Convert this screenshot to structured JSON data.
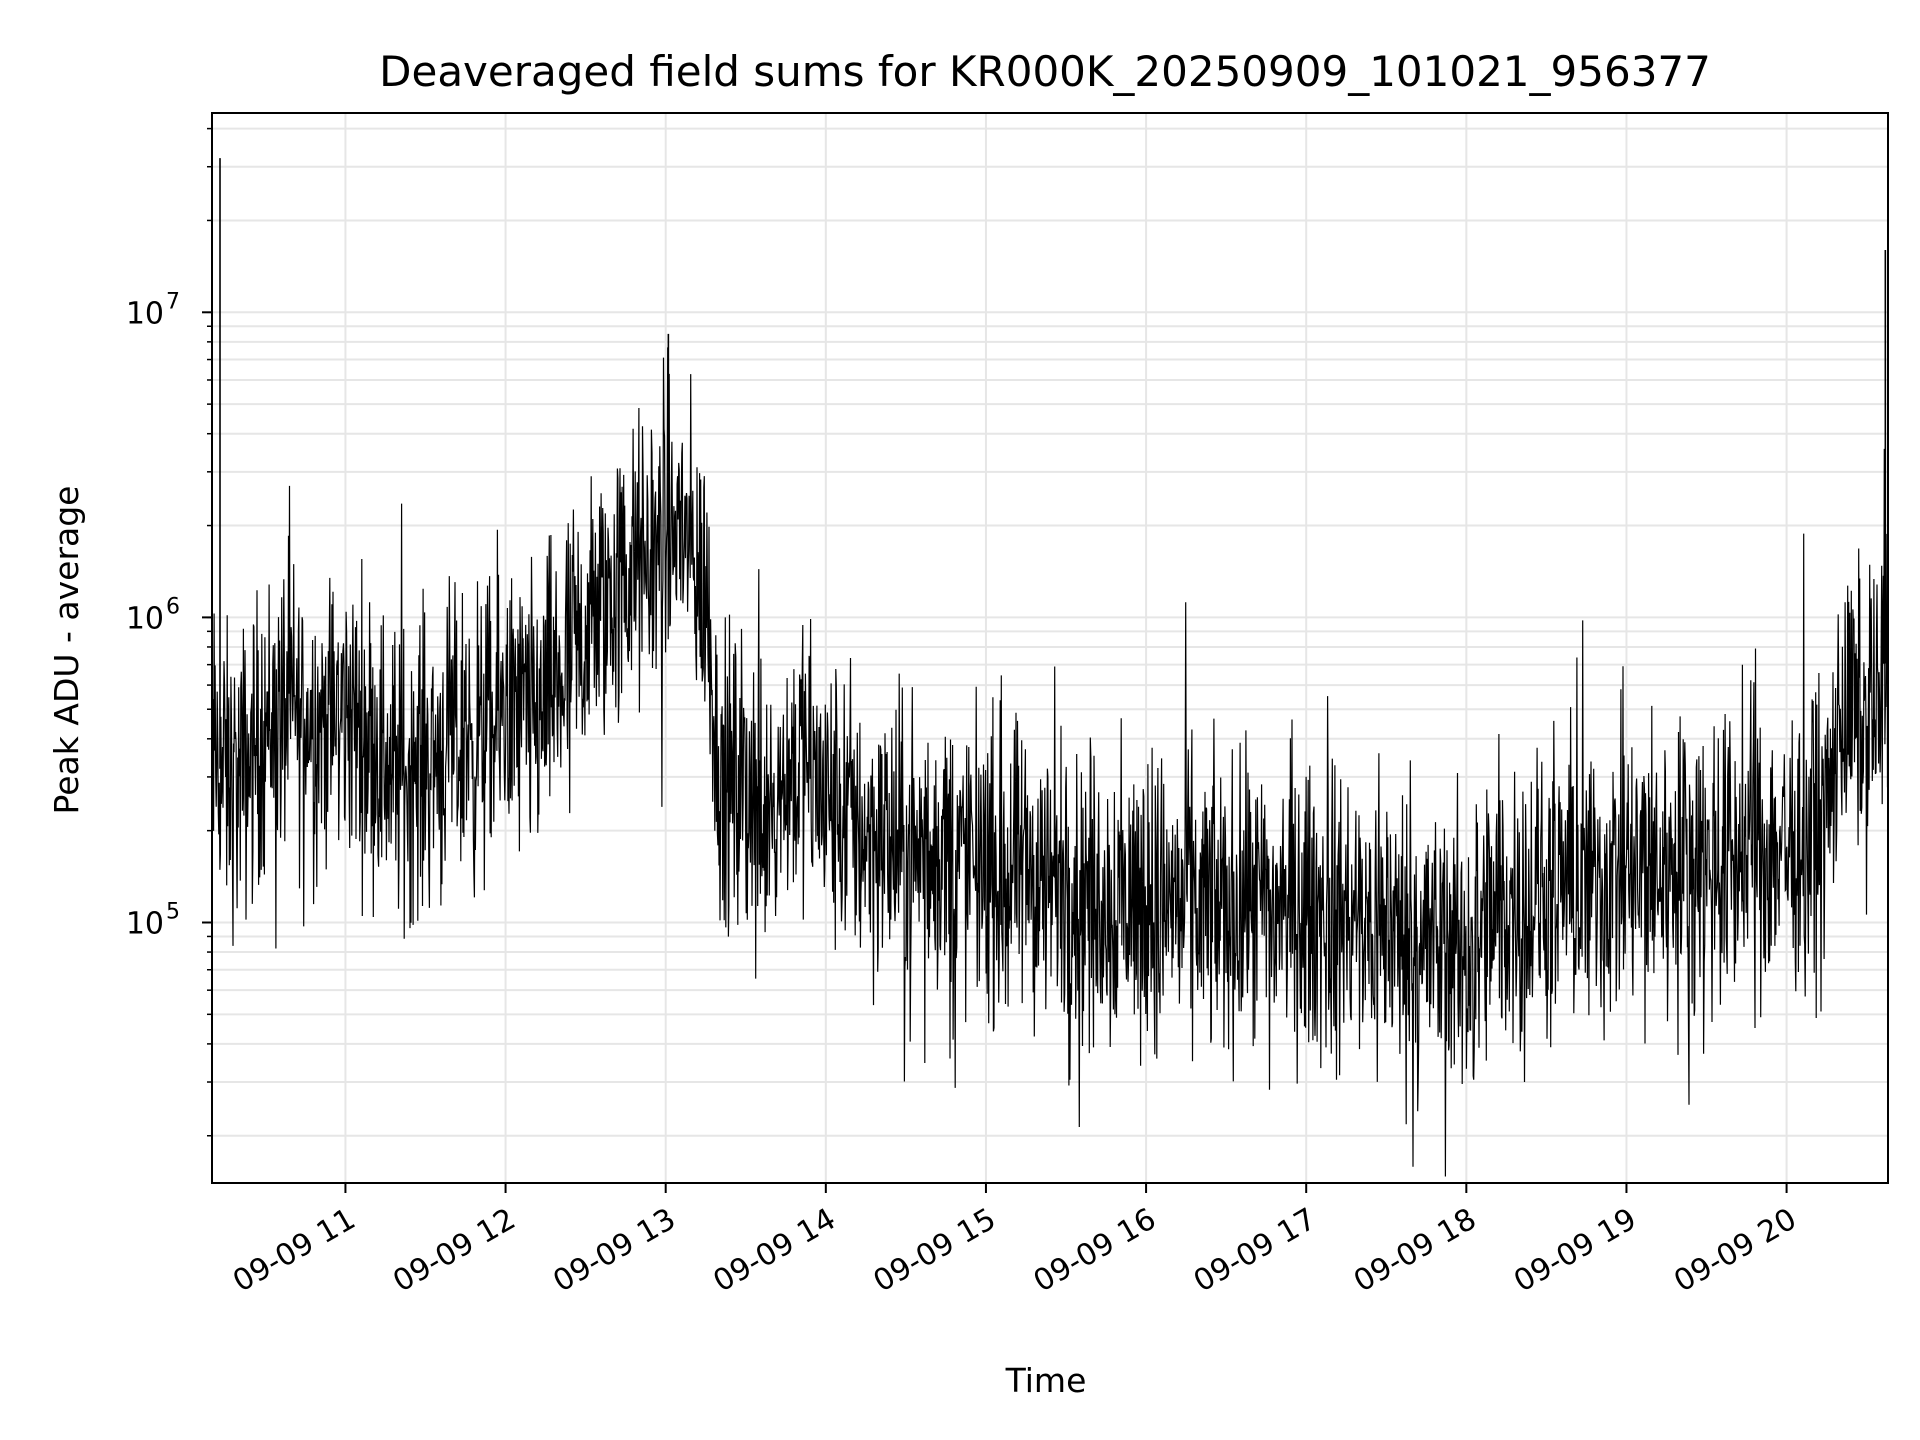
{
  "chart_data": {
    "type": "line",
    "title": "Deaveraged field sums for KR000K_20250909_101021_956377",
    "xlabel": "Time",
    "ylabel": "Peak ADU - average",
    "y_scale": "log",
    "grid": true,
    "grid_minor": true,
    "line_color": "#000000",
    "grid_color": "#e6e6e6",
    "xlim": [
      "2025-09-09 10:10",
      "2025-09-09 20:38"
    ],
    "ylim": [
      14000,
      45000000
    ],
    "x_ticks": [
      "09-09 11",
      "09-09 12",
      "09-09 13",
      "09-09 14",
      "09-09 15",
      "09-09 16",
      "09-09 17",
      "09-09 18",
      "09-09 19",
      "09-09 20"
    ],
    "x_tick_times": [
      "2025-09-09 11:00",
      "2025-09-09 12:00",
      "2025-09-09 13:00",
      "2025-09-09 14:00",
      "2025-09-09 15:00",
      "2025-09-09 16:00",
      "2025-09-09 17:00",
      "2025-09-09 18:00",
      "2025-09-09 19:00",
      "2025-09-09 20:00"
    ],
    "y_ticks": [
      {
        "value": 100000,
        "base": "10",
        "exp": "5"
      },
      {
        "value": 1000000,
        "base": "10",
        "exp": "6"
      },
      {
        "value": 10000000,
        "base": "10",
        "exp": "7"
      }
    ],
    "series": [
      {
        "x": [
          "2025-09-09 10:10",
          "2025-09-09 10:15",
          "2025-09-09 10:20",
          "2025-09-09 10:30",
          "2025-09-09 10:40",
          "2025-09-09 10:50",
          "2025-09-09 11:00",
          "2025-09-09 11:10",
          "2025-09-09 11:20",
          "2025-09-09 11:30",
          "2025-09-09 11:40",
          "2025-09-09 11:50",
          "2025-09-09 12:00",
          "2025-09-09 12:10",
          "2025-09-09 12:20",
          "2025-09-09 12:30",
          "2025-09-09 12:40",
          "2025-09-09 12:50",
          "2025-09-09 13:00",
          "2025-09-09 13:05",
          "2025-09-09 13:10",
          "2025-09-09 13:15",
          "2025-09-09 13:20",
          "2025-09-09 13:30",
          "2025-09-09 13:40",
          "2025-09-09 13:50",
          "2025-09-09 14:00",
          "2025-09-09 14:15",
          "2025-09-09 14:30",
          "2025-09-09 14:45",
          "2025-09-09 15:00",
          "2025-09-09 15:15",
          "2025-09-09 15:30",
          "2025-09-09 15:45",
          "2025-09-09 16:00",
          "2025-09-09 16:15",
          "2025-09-09 16:30",
          "2025-09-09 16:45",
          "2025-09-09 17:00",
          "2025-09-09 17:15",
          "2025-09-09 17:30",
          "2025-09-09 17:45",
          "2025-09-09 18:00",
          "2025-09-09 18:15",
          "2025-09-09 18:30",
          "2025-09-09 18:45",
          "2025-09-09 19:00",
          "2025-09-09 19:15",
          "2025-09-09 19:30",
          "2025-09-09 19:45",
          "2025-09-09 20:00",
          "2025-09-09 20:15",
          "2025-09-09 20:20",
          "2025-09-09 20:25",
          "2025-09-09 20:30",
          "2025-09-09 20:35",
          "2025-09-09 20:38"
        ],
        "y": [
          350000,
          300000,
          280000,
          450000,
          500000,
          450000,
          500000,
          400000,
          300000,
          350000,
          380000,
          400000,
          500000,
          450000,
          600000,
          900000,
          1200000,
          1500000,
          1800000,
          2000000,
          1500000,
          1200000,
          300000,
          280000,
          260000,
          350000,
          250000,
          200000,
          170000,
          170000,
          150000,
          140000,
          130000,
          120000,
          120000,
          115000,
          110000,
          110000,
          110000,
          100000,
          95000,
          85000,
          80000,
          110000,
          120000,
          130000,
          140000,
          150000,
          160000,
          170000,
          180000,
          200000,
          450000,
          480000,
          500000,
          550000,
          800000
        ]
      }
    ],
    "annotations_peaks": [
      {
        "x": "2025-09-09 10:13",
        "y": 32000000
      },
      {
        "x": "2025-09-09 13:01",
        "y": 8500000
      },
      {
        "x": "2025-09-09 20:37",
        "y": 16000000
      }
    ]
  }
}
